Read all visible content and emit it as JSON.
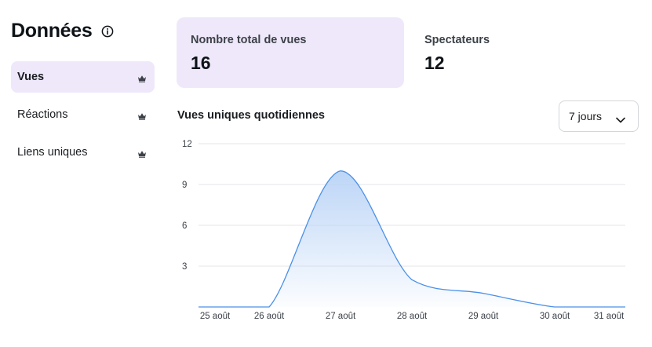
{
  "panel": {
    "title": "Données",
    "info_icon": "info-circle-icon",
    "nav": [
      {
        "label": "Vues",
        "active": true,
        "icon": "crown-icon"
      },
      {
        "label": "Réactions",
        "active": false,
        "icon": "crown-icon"
      },
      {
        "label": "Liens uniques",
        "active": false,
        "icon": "crown-icon"
      }
    ]
  },
  "stats": {
    "total_views": {
      "label": "Nombre total de vues",
      "value": "16"
    },
    "viewers": {
      "label": "Spectateurs",
      "value": "12"
    }
  },
  "chart_section": {
    "title": "Vues uniques quotidiennes",
    "range": {
      "selected": "7 jours",
      "icon": "chevron-down-icon"
    }
  },
  "colors": {
    "accent_bg": "#efe8fb",
    "line": "#4a90e8",
    "fill_top": "#b9d3f6",
    "grid": "#e3e5e8"
  },
  "chart_data": {
    "type": "area",
    "title": "Vues uniques quotidiennes",
    "x": [
      "25 août",
      "26 août",
      "27 août",
      "28 août",
      "29 août",
      "30 août",
      "31 août"
    ],
    "values": [
      0,
      0,
      10,
      2,
      1,
      0,
      0
    ],
    "yticks": [
      3,
      6,
      9,
      12
    ],
    "ylim": [
      0,
      12
    ],
    "grid": true,
    "xlabel": "",
    "ylabel": ""
  }
}
